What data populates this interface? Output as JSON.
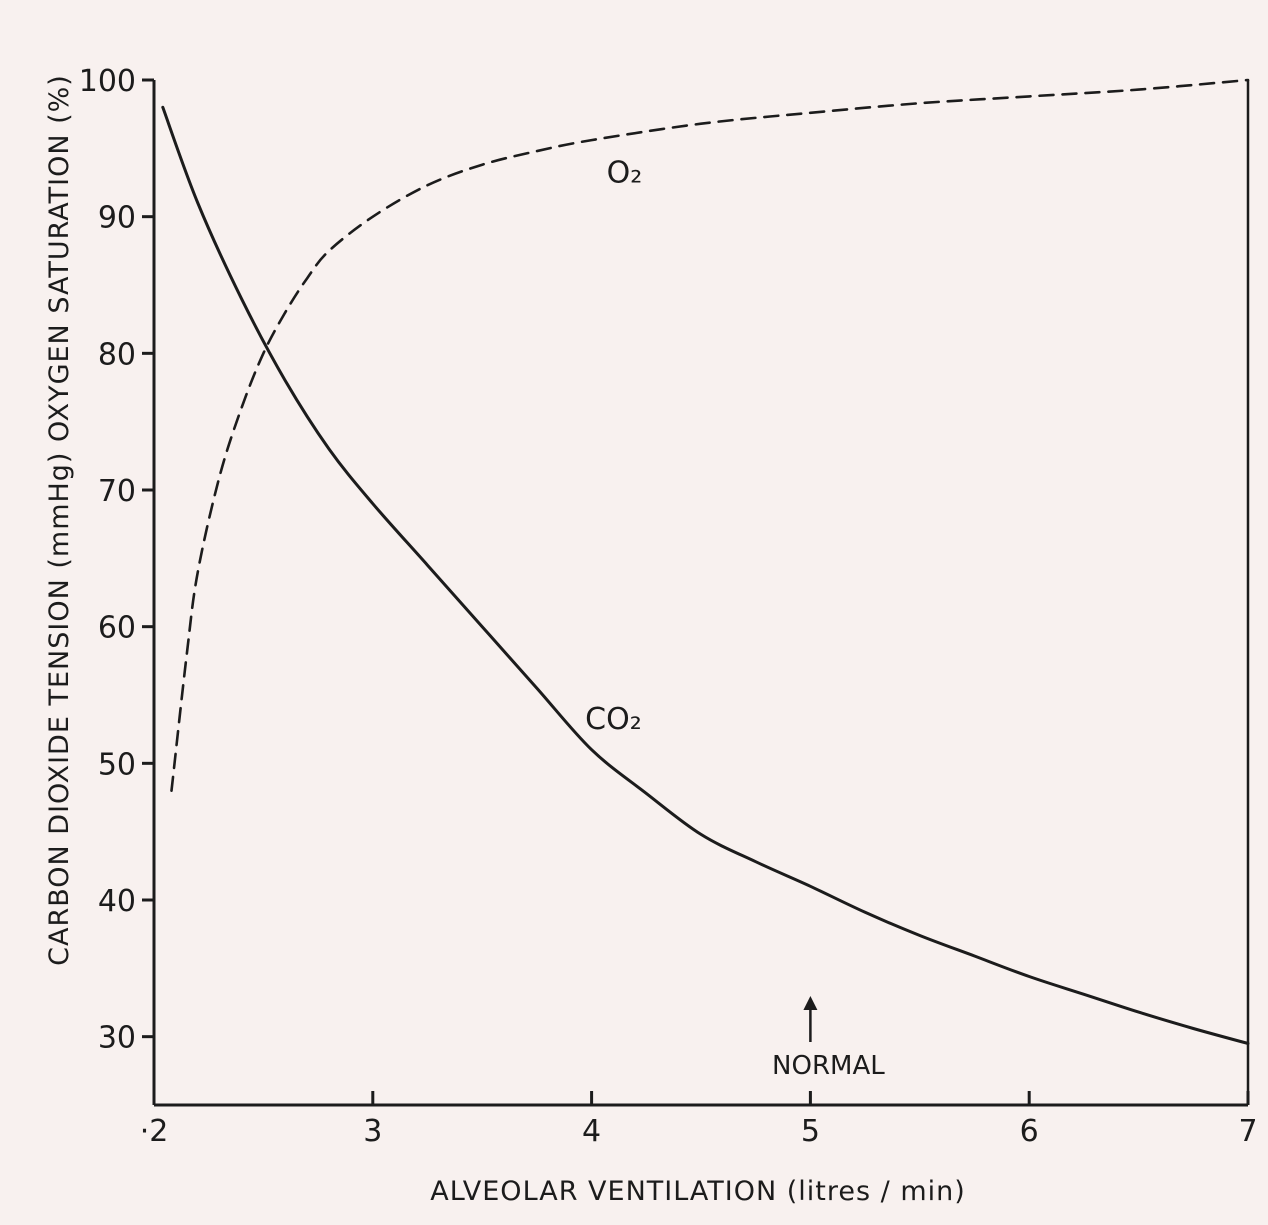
{
  "chart_data": {
    "type": "line",
    "xlabel": "ALVEOLAR VENTILATION (litres / min)",
    "ylabel": "CARBON DIOXIDE TENSION (mmHg) OXYGEN SATURATION (%)",
    "xlim": [
      2,
      7
    ],
    "ylim": [
      25,
      100
    ],
    "x_ticks": [
      2,
      3,
      4,
      5,
      6,
      7
    ],
    "x_tick_labels": [
      "·2",
      "3",
      "4",
      "5",
      "6",
      "7"
    ],
    "y_ticks": [
      30,
      40,
      50,
      60,
      70,
      80,
      90,
      100
    ],
    "y_tick_labels": [
      "30",
      "40",
      "50",
      "60",
      "70",
      "80",
      "90",
      "100"
    ],
    "grid": false,
    "colors": {
      "ink": "#1c1c1c",
      "paper": "#f8f1ef"
    },
    "series": [
      {
        "name": "CO₂",
        "style": "solid",
        "x": [
          2.04,
          2.2,
          2.4,
          2.6,
          2.8,
          3.0,
          3.25,
          3.5,
          3.75,
          4.0,
          4.25,
          4.5,
          4.75,
          5.0,
          5.25,
          5.5,
          5.75,
          6.0,
          6.25,
          6.5,
          6.75,
          7.0
        ],
        "y": [
          98,
          91,
          84,
          78,
          73,
          69,
          64.5,
          60,
          55.5,
          51,
          47.8,
          44.8,
          42.8,
          41,
          39.1,
          37.4,
          35.9,
          34.4,
          33.1,
          31.8,
          30.6,
          29.5
        ]
      },
      {
        "name": "O₂",
        "style": "dashed",
        "x": [
          2.08,
          2.15,
          2.2,
          2.3,
          2.4,
          2.5,
          2.6,
          2.7,
          2.8,
          3.0,
          3.25,
          3.5,
          3.75,
          4.0,
          4.5,
          5.0,
          5.5,
          6.0,
          6.5,
          7.0
        ],
        "y": [
          48,
          58,
          64,
          71,
          76,
          80,
          83,
          85.5,
          87.5,
          90,
          92.3,
          93.8,
          94.8,
          95.6,
          96.8,
          97.6,
          98.3,
          98.8,
          99.3,
          100
        ]
      }
    ],
    "series_labels": [
      {
        "text": "O₂",
        "x": 4.15,
        "y": 92.5
      },
      {
        "text": "CO₂",
        "x": 4.1,
        "y": 52.5
      }
    ],
    "annotations": [
      {
        "text": "NORMAL",
        "x": 5.0,
        "arrow": true
      }
    ]
  }
}
